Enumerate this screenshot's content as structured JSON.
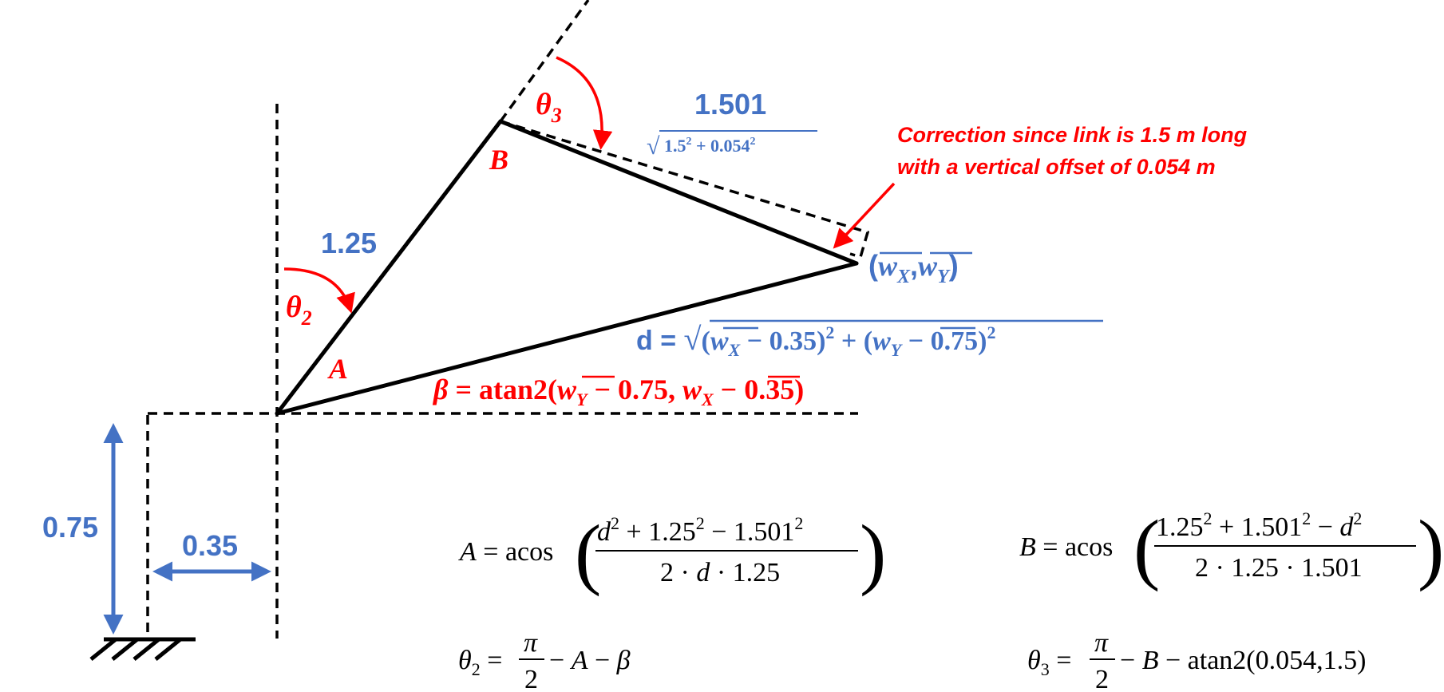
{
  "colors": {
    "blue": "#4472C4",
    "red": "#FF0000",
    "black": "#000000"
  },
  "dimensions": {
    "height": "0.75",
    "offset": "0.35",
    "link_a_length": "1.25",
    "link_b_length": "1.501",
    "link_b_formula_base": "1.5",
    "link_b_formula_offset": "0.054",
    "exp": "2"
  },
  "labels": {
    "theta": "θ",
    "theta2_sub": "2",
    "theta3_sub": "3",
    "point_a": "A",
    "point_b": "B",
    "w": "w",
    "w_x_sub": "X",
    "w_y_sub": "Y",
    "d": "d",
    "beta": "β",
    "atan2": "atan2",
    "acos": "acos",
    "pi": "π",
    "sqrt": "√"
  },
  "annotation": {
    "line1": "Correction since link is 1.5 m long",
    "line2": "with a vertical offset of 0.054 m"
  },
  "formulas": {
    "two": "2",
    "c035": "0.35",
    "c075": "0.75",
    "c054": "0.054",
    "c15": "1.5"
  }
}
